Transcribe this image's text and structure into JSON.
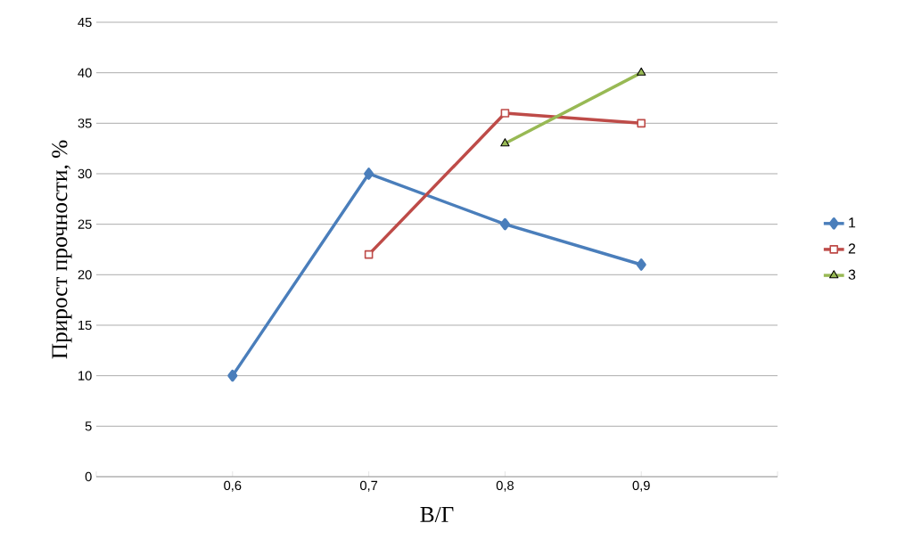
{
  "chart_data": {
    "type": "line",
    "xlabel": "В/Г",
    "ylabel": "Прирост прочности, %",
    "categories": [
      null,
      "0,6",
      "0,7",
      "0,8",
      "0,9",
      null
    ],
    "series": [
      {
        "name": "1",
        "color": "#4a7ebb",
        "marker": "diamond",
        "values": [
          null,
          10,
          30,
          25,
          21,
          null
        ]
      },
      {
        "name": "2",
        "color": "#be4b48",
        "marker": "square",
        "values": [
          null,
          null,
          22,
          36,
          35,
          null
        ]
      },
      {
        "name": "3",
        "color": "#98b954",
        "marker": "triangle",
        "values": [
          null,
          null,
          null,
          33,
          40,
          null
        ]
      }
    ],
    "ylim": [
      0,
      45
    ],
    "yticks": [
      0,
      5,
      10,
      15,
      20,
      25,
      30,
      35,
      40,
      45
    ],
    "grid": "y",
    "legend": "right"
  }
}
